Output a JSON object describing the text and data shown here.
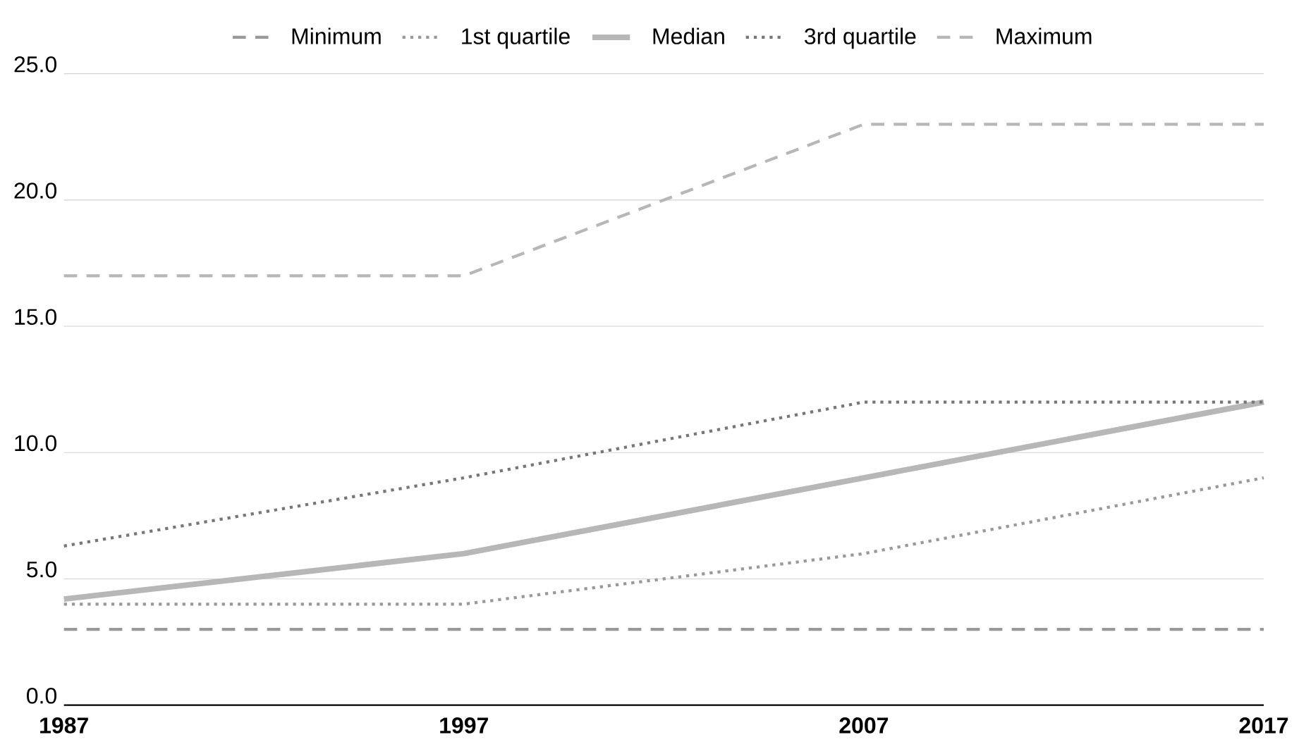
{
  "chart_data": {
    "type": "line",
    "x": [
      1987,
      1997,
      2007,
      2017
    ],
    "series": [
      {
        "name": "Minimum",
        "color": "#999999",
        "line_style": "dashed",
        "values": [
          3,
          3,
          3,
          3
        ]
      },
      {
        "name": "1st quartile",
        "color": "#999999",
        "line_style": "dotted",
        "values": [
          4,
          4,
          6,
          9
        ]
      },
      {
        "name": "Median",
        "color": "#b7b7b7",
        "line_style": "solid",
        "values": [
          4.2,
          6,
          9,
          12
        ]
      },
      {
        "name": "3rd quartile",
        "color": "#777777",
        "line_style": "dotted",
        "values": [
          6.3,
          9,
          12,
          12
        ]
      },
      {
        "name": "Maximum",
        "color": "#b7b7b7",
        "line_style": "dashed",
        "values": [
          17,
          17,
          23,
          23
        ]
      }
    ],
    "xlim": [
      1987,
      2017
    ],
    "xticks": [
      1987,
      1997,
      2007,
      2017
    ],
    "ylim": [
      0,
      25
    ],
    "yticks": [
      {
        "value": 0,
        "label": "0.0"
      },
      {
        "value": 5,
        "label": "5.0"
      },
      {
        "value": 10,
        "label": "10.0"
      },
      {
        "value": 15,
        "label": "15.0"
      },
      {
        "value": 20,
        "label": "20.0"
      },
      {
        "value": 25,
        "label": "25.0"
      }
    ],
    "grid": "y",
    "legend": "top",
    "marker": "none"
  }
}
